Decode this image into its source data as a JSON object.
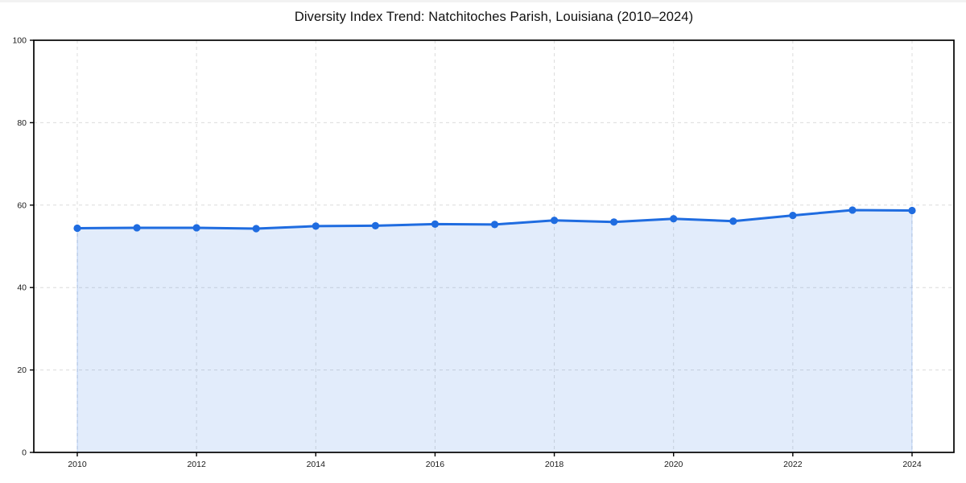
{
  "page": {
    "background_color": "#ffffff"
  },
  "chart_data": {
    "type": "area",
    "title": "Diversity Index Trend: Natchitoches Parish, Louisiana (2010–2024)",
    "x": [
      2010,
      2011,
      2012,
      2013,
      2014,
      2015,
      2016,
      2017,
      2018,
      2019,
      2020,
      2021,
      2022,
      2023,
      2024
    ],
    "values": [
      54.4,
      54.5,
      54.5,
      54.3,
      54.9,
      55.0,
      55.4,
      55.3,
      56.3,
      55.9,
      56.7,
      56.1,
      57.5,
      58.8,
      58.7
    ],
    "xlabel": "",
    "ylabel": "",
    "ylim": [
      0,
      100
    ],
    "yticks": [
      0,
      20,
      40,
      60,
      80,
      100
    ],
    "xticks": [
      2010,
      2012,
      2014,
      2016,
      2018,
      2020,
      2022,
      2024
    ],
    "grid": true,
    "grid_style": "dashed",
    "legend": "none",
    "line_color": "#1f6ce0",
    "marker_color": "#1f6ce0",
    "fill_color": "rgba(31,108,224,0.13)",
    "fill_edge_color": "rgba(31,108,224,0.25)",
    "grid_color": "#dcdcdc",
    "spine_color": "#000000",
    "tick_label_color": "#1a1a1a",
    "title_color": "#111111"
  }
}
